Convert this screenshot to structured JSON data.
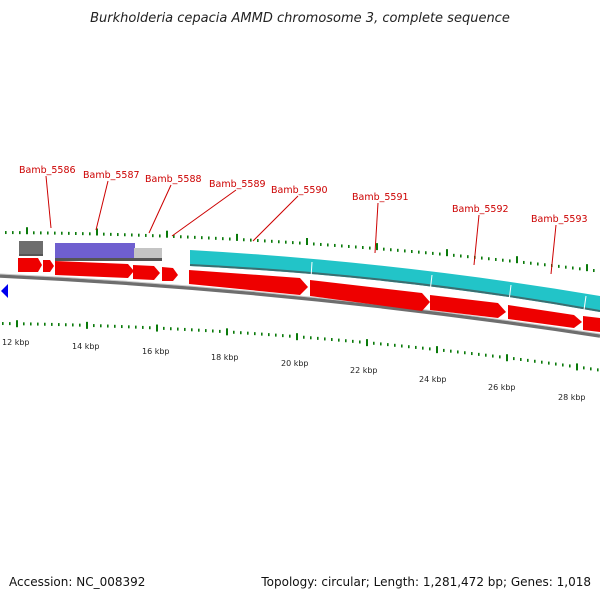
{
  "title": "Burkholderia cepacia AMMD chromosome 3, complete sequence",
  "footer": {
    "accession": "Accession: NC_008392",
    "summary": "Topology: circular; Length: 1,281,472 bp; Genes: 1,018"
  },
  "genes": [
    {
      "label": "Bamb_5586"
    },
    {
      "label": "Bamb_5587"
    },
    {
      "label": "Bamb_5588"
    },
    {
      "label": "Bamb_5589"
    },
    {
      "label": "Bamb_5590"
    },
    {
      "label": "Bamb_5591"
    },
    {
      "label": "Bamb_5592"
    },
    {
      "label": "Bamb_5593"
    }
  ],
  "scale": {
    "labels": [
      "12 kbp",
      "14 kbp",
      "16 kbp",
      "18 kbp",
      "20 kbp",
      "22 kbp",
      "24 kbp",
      "26 kbp",
      "28 kbp"
    ]
  },
  "colors": {
    "cds": "#ee0000",
    "feature_teal": "#22c4c8",
    "feature_purple": "#6f5fcf",
    "feature_gray": "#bdbdbd",
    "feature_dark": "#707070",
    "label": "#cc0000",
    "tick": "#0a7a0a",
    "backbone": "#888888",
    "nav_arrow": "#0000ee"
  }
}
